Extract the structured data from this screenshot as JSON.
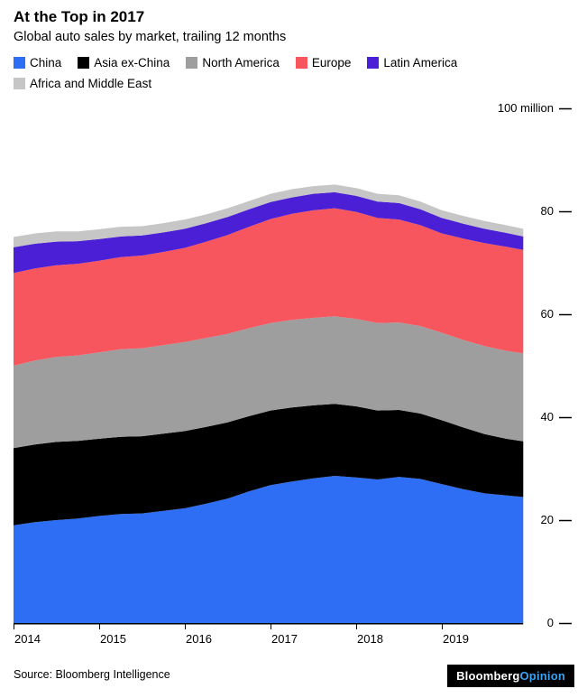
{
  "header": {
    "title": "At the Top in 2017",
    "subtitle": "Global auto sales by market, trailing 12 months"
  },
  "footer": {
    "source": "Source: Bloomberg Intelligence",
    "brand": "Bloomberg",
    "brand_suffix": "Opinion",
    "brand_bg": "#000000",
    "brand_text_color": "#ffffff",
    "opinion_color": "#3ba1f1"
  },
  "chart_data": {
    "type": "area",
    "stacked": true,
    "title": "At the Top in 2017",
    "subtitle": "Global auto sales by market, trailing 12 months",
    "unit": "million",
    "legend_position": "top",
    "grid": false,
    "ylim": [
      0,
      100
    ],
    "xlim": [
      2014,
      2019.95
    ],
    "x": [
      2014,
      2014.25,
      2014.5,
      2014.75,
      2015,
      2015.25,
      2015.5,
      2015.75,
      2016,
      2016.25,
      2016.5,
      2016.75,
      2017,
      2017.25,
      2017.5,
      2017.75,
      2018,
      2018.25,
      2018.5,
      2018.75,
      2019,
      2019.25,
      2019.5,
      2019.75,
      2019.95
    ],
    "series": [
      {
        "key": "china",
        "name": "China",
        "color": "#2e6ef5",
        "values": [
          19.0,
          19.6,
          20.0,
          20.3,
          20.8,
          21.2,
          21.3,
          21.8,
          22.3,
          23.2,
          24.2,
          25.6,
          26.8,
          27.5,
          28.1,
          28.6,
          28.3,
          27.9,
          28.4,
          28.0,
          27.0,
          26.0,
          25.2,
          24.8,
          24.5
        ]
      },
      {
        "key": "asia-ex-china",
        "name": "Asia ex-China",
        "color": "#000000",
        "values": [
          15.0,
          15.1,
          15.2,
          15.1,
          15.0,
          15.0,
          15.0,
          15.0,
          15.0,
          14.9,
          14.8,
          14.6,
          14.5,
          14.4,
          14.2,
          14.0,
          13.8,
          13.4,
          13.0,
          12.7,
          12.4,
          12.0,
          11.5,
          11.0,
          10.8
        ]
      },
      {
        "key": "north-america",
        "name": "North America",
        "color": "#9e9e9e",
        "values": [
          16.0,
          16.3,
          16.5,
          16.6,
          16.8,
          17.0,
          17.1,
          17.2,
          17.3,
          17.3,
          17.2,
          17.1,
          17.0,
          17.0,
          17.0,
          17.0,
          17.0,
          17.0,
          17.0,
          17.0,
          17.0,
          17.0,
          17.1,
          17.1,
          17.1
        ]
      },
      {
        "key": "europe",
        "name": "Europe",
        "color": "#f7565f",
        "values": [
          18.0,
          17.9,
          17.8,
          17.8,
          17.8,
          17.9,
          18.0,
          18.1,
          18.3,
          18.7,
          19.2,
          19.7,
          20.2,
          20.6,
          20.9,
          21.0,
          20.8,
          20.4,
          20.0,
          19.6,
          19.3,
          19.7,
          20.0,
          20.2,
          20.1
        ]
      },
      {
        "key": "latin-america",
        "name": "Latin America",
        "color": "#4b1fd6",
        "values": [
          5.0,
          4.8,
          4.6,
          4.4,
          4.2,
          4.0,
          3.9,
          3.8,
          3.7,
          3.6,
          3.5,
          3.4,
          3.3,
          3.2,
          3.2,
          3.1,
          3.1,
          3.2,
          3.2,
          3.1,
          3.0,
          2.9,
          2.8,
          2.7,
          2.6
        ]
      },
      {
        "key": "africa-middle-east",
        "name": "Africa and Middle East",
        "color": "#c6c6c6",
        "values": [
          2.0,
          2.0,
          2.0,
          1.9,
          1.9,
          1.9,
          1.8,
          1.8,
          1.8,
          1.7,
          1.7,
          1.6,
          1.6,
          1.6,
          1.5,
          1.5,
          1.5,
          1.5,
          1.5,
          1.5,
          1.5,
          1.5,
          1.5,
          1.5,
          1.5
        ]
      }
    ],
    "yticks": [
      {
        "value": 0,
        "label": "0"
      },
      {
        "value": 20,
        "label": "20"
      },
      {
        "value": 40,
        "label": "40"
      },
      {
        "value": 60,
        "label": "60"
      },
      {
        "value": 80,
        "label": "80"
      },
      {
        "value": 100,
        "label": "100 million"
      }
    ],
    "xticks": [
      2014,
      2015,
      2016,
      2017,
      2018,
      2019
    ]
  }
}
